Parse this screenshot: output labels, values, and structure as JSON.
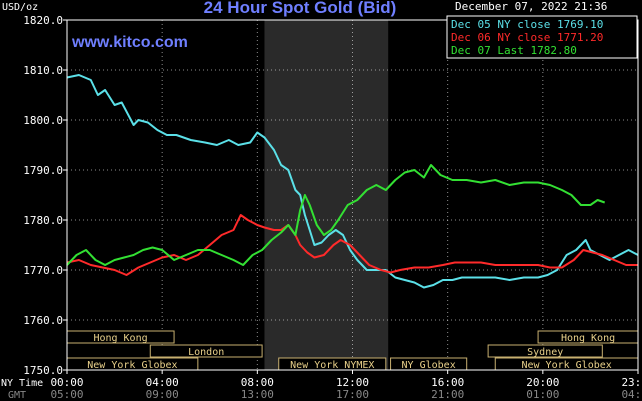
{
  "chart_data": {
    "type": "line",
    "title": "24 Hour Spot Gold (Bid)",
    "watermark": "www.kitco.com",
    "ylabel": "USD/oz",
    "timestamp": "December 07, 2022 21:36",
    "ylim": [
      1750,
      1820
    ],
    "y_ticks": [
      "1820.0",
      "1810.0",
      "1800.0",
      "1790.0",
      "1780.0",
      "1770.0",
      "1760.0",
      "1750.0"
    ],
    "x_range_hours": [
      0,
      24
    ],
    "ny_time_label": "NY Time",
    "gmt_label": "GMT",
    "ny_ticks": [
      "00:00",
      "04:00",
      "08:00",
      "12:00",
      "16:00",
      "20:00",
      "23:59"
    ],
    "gmt_ticks": [
      "05:00",
      "09:00",
      "13:00",
      "17:00",
      "21:00",
      "01:00",
      "04:59"
    ],
    "legend": [
      {
        "label": "Dec 05 NY close 1769.10",
        "color": "#5be0e8"
      },
      {
        "label": "Dec 06 NY close 1771.20",
        "color": "#ff2a2a"
      },
      {
        "label": "Dec 07 Last 1782.80",
        "color": "#33e033"
      }
    ],
    "shaded_session_hours": [
      8.3,
      13.5
    ],
    "sessions": [
      {
        "name": "Hong Kong",
        "start": 0,
        "end": 4.5,
        "row": 0
      },
      {
        "name": "London",
        "start": 3.5,
        "end": 8.2,
        "row": 1
      },
      {
        "name": "New York Globex",
        "start": 0,
        "end": 5.5,
        "row": 2
      },
      {
        "name": "New York NYMEX",
        "start": 8.9,
        "end": 13.4,
        "row": 2
      },
      {
        "name": "NY Globex",
        "start": 13.6,
        "end": 16.8,
        "row": 2
      },
      {
        "name": "Hong Kong",
        "start": 19.8,
        "end": 24,
        "row": 0
      },
      {
        "name": "Sydney",
        "start": 17.7,
        "end": 22.5,
        "row": 1
      },
      {
        "name": "New York Globex",
        "start": 18.0,
        "end": 24,
        "row": 2
      }
    ],
    "series": [
      {
        "name": "Dec 05 NY close 1769.10",
        "color": "#5be0e8",
        "points": [
          [
            0,
            1808.5
          ],
          [
            0.5,
            1809
          ],
          [
            1,
            1808
          ],
          [
            1.3,
            1805
          ],
          [
            1.6,
            1806
          ],
          [
            2,
            1803
          ],
          [
            2.3,
            1803.5
          ],
          [
            2.8,
            1799
          ],
          [
            3,
            1800
          ],
          [
            3.4,
            1799.5
          ],
          [
            3.8,
            1798
          ],
          [
            4.2,
            1797
          ],
          [
            4.6,
            1797
          ],
          [
            5.2,
            1796
          ],
          [
            5.8,
            1795.5
          ],
          [
            6.3,
            1795
          ],
          [
            6.8,
            1796
          ],
          [
            7.2,
            1795
          ],
          [
            7.7,
            1795.5
          ],
          [
            8.0,
            1797.5
          ],
          [
            8.3,
            1796.5
          ],
          [
            8.7,
            1794
          ],
          [
            9.0,
            1791
          ],
          [
            9.3,
            1790
          ],
          [
            9.6,
            1786
          ],
          [
            9.8,
            1785
          ],
          [
            10.0,
            1781
          ],
          [
            10.2,
            1778
          ],
          [
            10.4,
            1775
          ],
          [
            10.7,
            1775.5
          ],
          [
            11.0,
            1777
          ],
          [
            11.3,
            1778
          ],
          [
            11.6,
            1777
          ],
          [
            11.9,
            1774
          ],
          [
            12.2,
            1772
          ],
          [
            12.6,
            1770
          ],
          [
            13.0,
            1770
          ],
          [
            13.4,
            1770
          ],
          [
            13.8,
            1768.5
          ],
          [
            14.2,
            1768
          ],
          [
            14.6,
            1767.5
          ],
          [
            15.0,
            1766.5
          ],
          [
            15.4,
            1767
          ],
          [
            15.8,
            1768
          ],
          [
            16.2,
            1768
          ],
          [
            16.6,
            1768.5
          ],
          [
            17.0,
            1768.5
          ],
          [
            17.5,
            1768.5
          ],
          [
            18.0,
            1768.5
          ],
          [
            18.6,
            1768
          ],
          [
            19.2,
            1768.5
          ],
          [
            19.8,
            1768.5
          ],
          [
            20.2,
            1769
          ],
          [
            20.6,
            1770
          ],
          [
            21.0,
            1773
          ],
          [
            21.4,
            1774
          ],
          [
            21.8,
            1776
          ],
          [
            22.0,
            1774
          ],
          [
            22.4,
            1773
          ],
          [
            22.8,
            1772
          ],
          [
            23.2,
            1773
          ],
          [
            23.6,
            1774
          ],
          [
            24.0,
            1773
          ]
        ]
      },
      {
        "name": "Dec 06 NY close 1771.20",
        "color": "#ff2a2a",
        "points": [
          [
            0,
            1771.5
          ],
          [
            0.5,
            1772
          ],
          [
            1,
            1771
          ],
          [
            1.5,
            1770.5
          ],
          [
            2,
            1770
          ],
          [
            2.5,
            1769
          ],
          [
            3.0,
            1770.5
          ],
          [
            3.5,
            1771.5
          ],
          [
            4,
            1772.5
          ],
          [
            4.5,
            1773
          ],
          [
            5,
            1772
          ],
          [
            5.5,
            1773
          ],
          [
            6,
            1775
          ],
          [
            6.5,
            1777
          ],
          [
            7,
            1778
          ],
          [
            7.3,
            1781
          ],
          [
            7.6,
            1780
          ],
          [
            8,
            1779
          ],
          [
            8.3,
            1778.5
          ],
          [
            8.7,
            1778
          ],
          [
            9.0,
            1778
          ],
          [
            9.3,
            1779
          ],
          [
            9.6,
            1777
          ],
          [
            9.8,
            1775
          ],
          [
            10.1,
            1773.5
          ],
          [
            10.4,
            1772.5
          ],
          [
            10.8,
            1773
          ],
          [
            11.2,
            1775
          ],
          [
            11.5,
            1776
          ],
          [
            11.9,
            1775
          ],
          [
            12.3,
            1773
          ],
          [
            12.7,
            1771
          ],
          [
            13.2,
            1770
          ],
          [
            13.6,
            1769.5
          ],
          [
            14,
            1770
          ],
          [
            14.6,
            1770.5
          ],
          [
            15.2,
            1770.5
          ],
          [
            15.8,
            1771
          ],
          [
            16.3,
            1771.5
          ],
          [
            16.8,
            1771.5
          ],
          [
            17.4,
            1771.5
          ],
          [
            18,
            1771
          ],
          [
            18.6,
            1771
          ],
          [
            19.2,
            1771
          ],
          [
            19.8,
            1771
          ],
          [
            20.3,
            1770.5
          ],
          [
            20.8,
            1770.5
          ],
          [
            21.3,
            1772
          ],
          [
            21.7,
            1774
          ],
          [
            22.1,
            1773.5
          ],
          [
            22.5,
            1773
          ],
          [
            23,
            1772
          ],
          [
            23.5,
            1771
          ],
          [
            24,
            1771
          ]
        ]
      },
      {
        "name": "Dec 07 Last 1782.80",
        "color": "#33e033",
        "points": [
          [
            0,
            1771
          ],
          [
            0.4,
            1773
          ],
          [
            0.8,
            1774
          ],
          [
            1.2,
            1772
          ],
          [
            1.6,
            1771
          ],
          [
            2,
            1772
          ],
          [
            2.4,
            1772.5
          ],
          [
            2.8,
            1773
          ],
          [
            3.2,
            1774
          ],
          [
            3.6,
            1774.5
          ],
          [
            4,
            1774
          ],
          [
            4.5,
            1772
          ],
          [
            5,
            1773
          ],
          [
            5.5,
            1774
          ],
          [
            6,
            1774
          ],
          [
            6.5,
            1773
          ],
          [
            7,
            1772
          ],
          [
            7.4,
            1771
          ],
          [
            7.8,
            1773
          ],
          [
            8.2,
            1774
          ],
          [
            8.6,
            1776
          ],
          [
            9,
            1777.5
          ],
          [
            9.3,
            1779
          ],
          [
            9.6,
            1777
          ],
          [
            9.8,
            1782
          ],
          [
            10.0,
            1785
          ],
          [
            10.2,
            1783
          ],
          [
            10.5,
            1779
          ],
          [
            10.8,
            1777
          ],
          [
            11.1,
            1778
          ],
          [
            11.4,
            1780
          ],
          [
            11.8,
            1783
          ],
          [
            12.2,
            1784
          ],
          [
            12.6,
            1786
          ],
          [
            13.0,
            1787
          ],
          [
            13.4,
            1786
          ],
          [
            13.8,
            1788
          ],
          [
            14.2,
            1789.5
          ],
          [
            14.6,
            1790
          ],
          [
            15.0,
            1788.5
          ],
          [
            15.3,
            1791
          ],
          [
            15.7,
            1789
          ],
          [
            16.2,
            1788
          ],
          [
            16.8,
            1788
          ],
          [
            17.4,
            1787.5
          ],
          [
            18,
            1788
          ],
          [
            18.6,
            1787
          ],
          [
            19.2,
            1787.5
          ],
          [
            19.8,
            1787.5
          ],
          [
            20.3,
            1787
          ],
          [
            20.8,
            1786
          ],
          [
            21.2,
            1785
          ],
          [
            21.6,
            1783
          ],
          [
            22.0,
            1783
          ],
          [
            22.3,
            1784
          ],
          [
            22.6,
            1783.5
          ]
        ]
      }
    ]
  }
}
